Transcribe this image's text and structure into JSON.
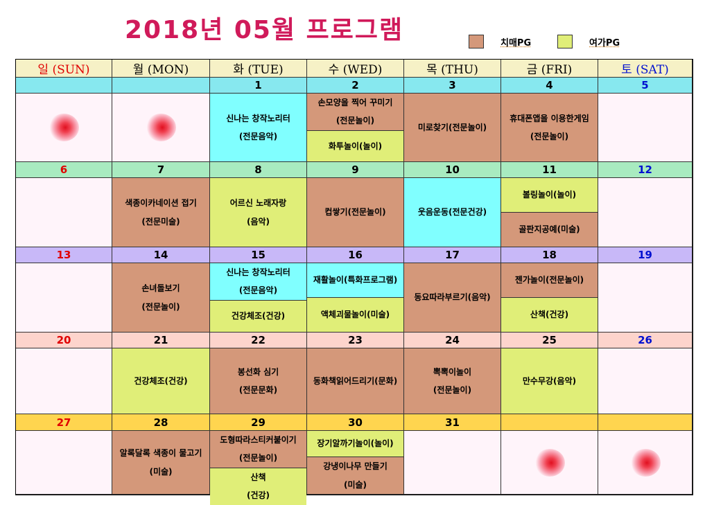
{
  "title": "2018년 05월 프로그램",
  "legend": [
    {
      "label": "치매PG",
      "color": "#d4987a"
    },
    {
      "label": "여가PG",
      "color": "#e0ee78"
    }
  ],
  "colors": {
    "empty": "#fff4fa",
    "sunday": "#e00000",
    "saturday": "#0010d0",
    "weekday": "#000000",
    "cyan": "#80ffff",
    "brown": "#d4987a",
    "green": "#e0ee78"
  },
  "headers": [
    {
      "label": "일 (SUN)",
      "color": "#e00000"
    },
    {
      "label": "월 (MON)",
      "color": "#000000"
    },
    {
      "label": "화 (TUE)",
      "color": "#000000"
    },
    {
      "label": "수 (WED)",
      "color": "#000000"
    },
    {
      "label": "목 (THU)",
      "color": "#000000"
    },
    {
      "label": "금 (FRI)",
      "color": "#000000"
    },
    {
      "label": "토 (SAT)",
      "color": "#0010d0"
    }
  ],
  "weeks": [
    {
      "row_color": "#87e8ef",
      "days": [
        {
          "date": "",
          "flower": true,
          "acts": []
        },
        {
          "date": "",
          "flower": true,
          "acts": []
        },
        {
          "date": "1",
          "acts": [
            {
              "lines": [
                "신나는 창작노리터",
                "(전문음악)"
              ],
              "color": "cyan"
            }
          ]
        },
        {
          "date": "2",
          "acts": [
            {
              "lines": [
                "손모양을 찍어 꾸미기",
                "(전문놀이)"
              ],
              "color": "brown"
            },
            {
              "lines": [
                "화투놀이(놀이)"
              ],
              "color": "green"
            }
          ]
        },
        {
          "date": "3",
          "acts": [
            {
              "lines": [
                "미로찾기(전문놀이)"
              ],
              "color": "brown"
            }
          ]
        },
        {
          "date": "4",
          "acts": [
            {
              "lines": [
                "휴대폰앱을 이용한게임",
                "(전문놀이)"
              ],
              "color": "brown"
            }
          ]
        },
        {
          "date": "5",
          "acts": []
        }
      ]
    },
    {
      "row_color": "#a8ebc0",
      "days": [
        {
          "date": "6",
          "acts": []
        },
        {
          "date": "7",
          "acts": [
            {
              "lines": [
                "색종이카네이션 접기",
                "(전문미술)"
              ],
              "color": "brown"
            }
          ]
        },
        {
          "date": "8",
          "acts": [
            {
              "lines": [
                "어르신 노래자랑",
                "(음악)"
              ],
              "color": "green"
            }
          ]
        },
        {
          "date": "9",
          "acts": [
            {
              "lines": [
                "컵쌓기(전문놀이)"
              ],
              "color": "brown"
            }
          ]
        },
        {
          "date": "10",
          "acts": [
            {
              "lines": [
                "웃음운동(전문건강)"
              ],
              "color": "cyan"
            }
          ]
        },
        {
          "date": "11",
          "acts": [
            {
              "lines": [
                "볼링놀이(놀이)"
              ],
              "color": "green"
            },
            {
              "lines": [
                "골판지공예(미술)"
              ],
              "color": "brown"
            }
          ]
        },
        {
          "date": "12",
          "acts": []
        }
      ]
    },
    {
      "row_color": "#c8b8f8",
      "days": [
        {
          "date": "13",
          "acts": []
        },
        {
          "date": "14",
          "acts": [
            {
              "lines": [
                "손녀돌보기",
                "(전문놀이)"
              ],
              "color": "brown"
            }
          ]
        },
        {
          "date": "15",
          "acts": [
            {
              "lines": [
                "신나는 창작노리터",
                "(전문음악)"
              ],
              "color": "cyan"
            },
            {
              "lines": [
                "건강체조(건강)"
              ],
              "color": "green"
            }
          ]
        },
        {
          "date": "16",
          "acts": [
            {
              "lines": [
                "재활놀이(특화프로그램)"
              ],
              "color": "cyan"
            },
            {
              "lines": [
                "액체괴물놀이(미술)"
              ],
              "color": "green"
            }
          ]
        },
        {
          "date": "17",
          "acts": [
            {
              "lines": [
                "동요따라부르기(음악)"
              ],
              "color": "brown"
            }
          ]
        },
        {
          "date": "18",
          "acts": [
            {
              "lines": [
                "젠가놀이(전문놀이)"
              ],
              "color": "brown"
            },
            {
              "lines": [
                "산책(건강)"
              ],
              "color": "green"
            }
          ]
        },
        {
          "date": "19",
          "acts": []
        }
      ]
    },
    {
      "row_color": "#fdd4cc",
      "days": [
        {
          "date": "20",
          "acts": []
        },
        {
          "date": "21",
          "acts": [
            {
              "lines": [
                "건강체조(건강)"
              ],
              "color": "green"
            }
          ]
        },
        {
          "date": "22",
          "acts": [
            {
              "lines": [
                "봉선화 심기",
                "(전문문화)"
              ],
              "color": "brown"
            }
          ]
        },
        {
          "date": "23",
          "acts": [
            {
              "lines": [
                "동화책읽어드리기(문화)"
              ],
              "color": "brown"
            }
          ]
        },
        {
          "date": "24",
          "acts": [
            {
              "lines": [
                "뽁뽁이놀이",
                "(전문놀이)"
              ],
              "color": "brown"
            }
          ]
        },
        {
          "date": "25",
          "acts": [
            {
              "lines": [
                "만수무강(음악)"
              ],
              "color": "green"
            }
          ]
        },
        {
          "date": "26",
          "acts": []
        }
      ]
    },
    {
      "row_color": "#ffd54f",
      "days": [
        {
          "date": "27",
          "acts": []
        },
        {
          "date": "28",
          "acts": [
            {
              "lines": [
                "알록달록 색종이 물고기",
                "(미술)"
              ],
              "color": "brown"
            }
          ]
        },
        {
          "date": "29",
          "acts": [
            {
              "lines": [
                "도형따라스티커붙이기",
                "(전문놀이)"
              ],
              "color": "brown"
            },
            {
              "lines": [
                "산책",
                "(건강)"
              ],
              "color": "green"
            }
          ]
        },
        {
          "date": "30",
          "acts": [
            {
              "lines": [
                "장기알까기놀이(놀이)"
              ],
              "color": "green"
            },
            {
              "lines": [
                "강냉이나무 만들기",
                "(미술)"
              ],
              "color": "brown"
            }
          ]
        },
        {
          "date": "31",
          "acts": []
        },
        {
          "date": "",
          "flower": true,
          "acts": []
        },
        {
          "date": "",
          "flower": true,
          "acts": []
        }
      ]
    }
  ]
}
